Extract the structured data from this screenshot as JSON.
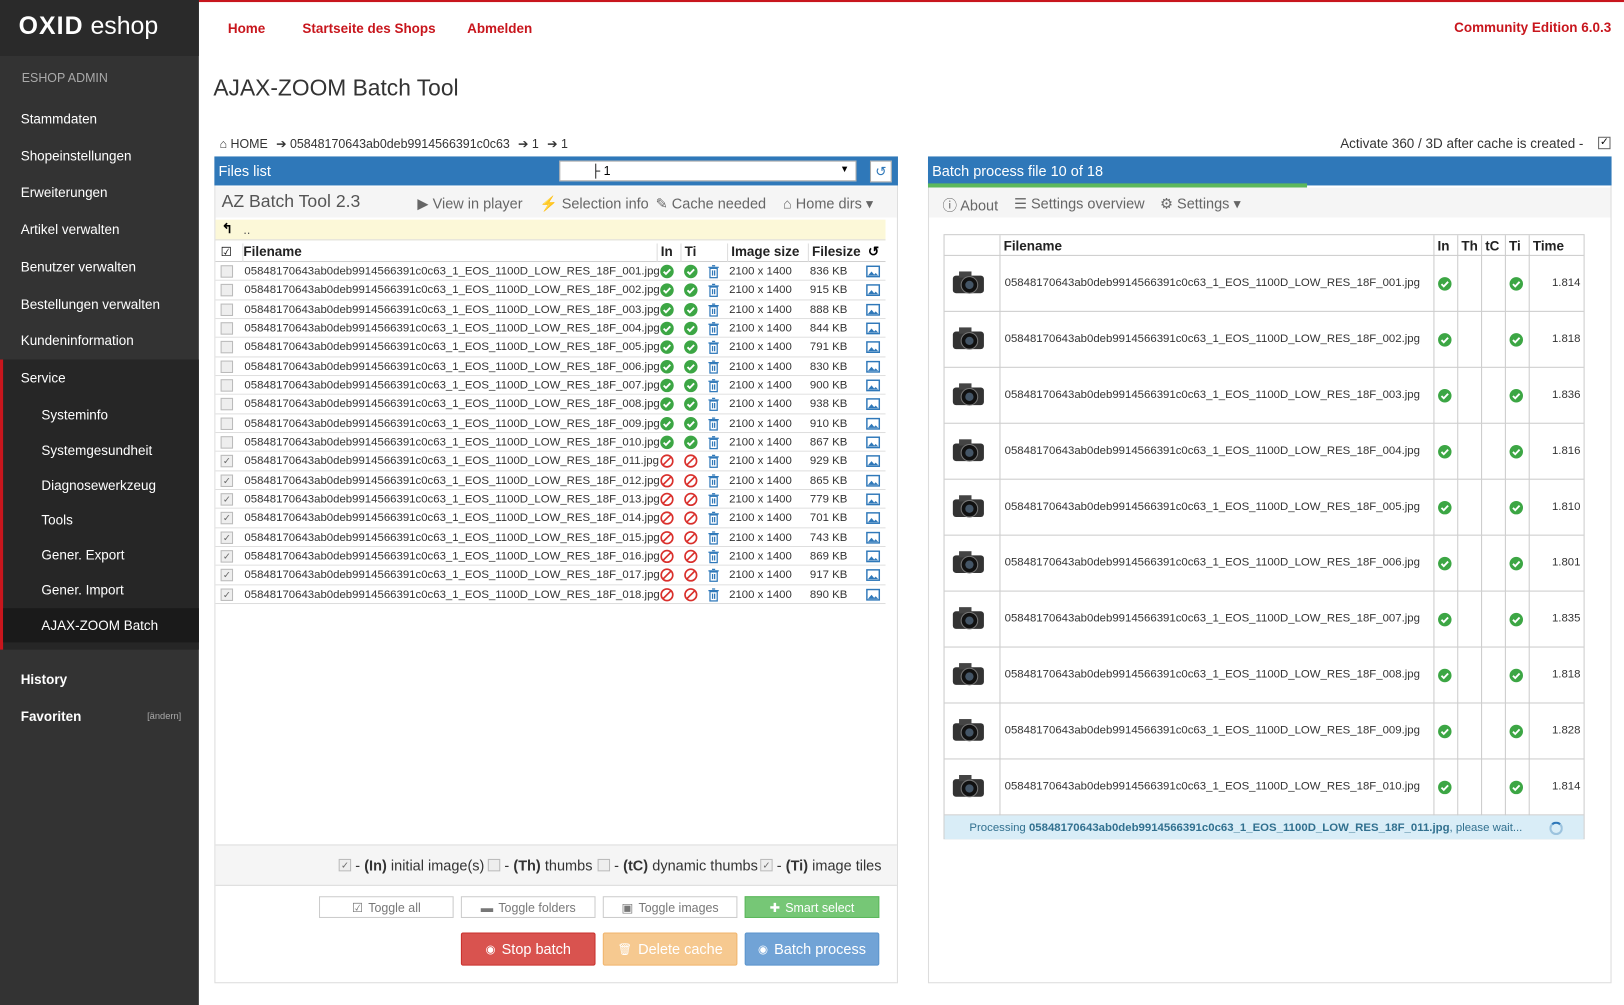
{
  "header": {
    "logo": {
      "brand": "OXID",
      "product": "eshop"
    },
    "nav": [
      "Home",
      "Startseite des Shops",
      "Abmelden"
    ],
    "edition": "Community Edition 6.0.3"
  },
  "sidebar": {
    "title": "ESHOP ADMIN",
    "items": [
      "Stammdaten",
      "Shopeinstellungen",
      "Erweiterungen",
      "Artikel verwalten",
      "Benutzer verwalten",
      "Bestellungen verwalten",
      "Kundeninformation",
      "Service"
    ],
    "subitems": [
      "Systeminfo",
      "Systemgesundheit",
      "Diagnosewerkzeug",
      "Tools",
      "Gener. Export",
      "Gener. Import",
      "AJAX-ZOOM Batch"
    ],
    "bottom": [
      "History",
      "Favoriten"
    ],
    "favorites_edit": "[ändern]"
  },
  "page": {
    "title": "AJAX-ZOOM Batch Tool",
    "breadcrumb": [
      "HOME",
      "05848170643ab0deb9914566391c0c63",
      "1",
      "1"
    ],
    "activate": "Activate 360 / 3D after cache is created -"
  },
  "files_panel": {
    "title": "Files list",
    "select": "├ 1",
    "tool_name": "AZ Batch Tool 2.3",
    "toolbar": [
      "View in player",
      "Selection info",
      "Cache needed",
      "Home dirs"
    ],
    "parent": "..",
    "columns": [
      "Filename",
      "In",
      "Ti",
      "Image size",
      "Filesize"
    ],
    "rows": [
      [
        "05848170643ab0deb9914566391c0c63_1_EOS_1100D_LOW_RES_18F_001.jpg",
        "2100 x 1400",
        "836 KB"
      ],
      [
        "05848170643ab0deb9914566391c0c63_1_EOS_1100D_LOW_RES_18F_002.jpg",
        "2100 x 1400",
        "915 KB"
      ],
      [
        "05848170643ab0deb9914566391c0c63_1_EOS_1100D_LOW_RES_18F_003.jpg",
        "2100 x 1400",
        "888 KB"
      ],
      [
        "05848170643ab0deb9914566391c0c63_1_EOS_1100D_LOW_RES_18F_004.jpg",
        "2100 x 1400",
        "844 KB"
      ],
      [
        "05848170643ab0deb9914566391c0c63_1_EOS_1100D_LOW_RES_18F_005.jpg",
        "2100 x 1400",
        "791 KB"
      ],
      [
        "05848170643ab0deb9914566391c0c63_1_EOS_1100D_LOW_RES_18F_006.jpg",
        "2100 x 1400",
        "830 KB"
      ],
      [
        "05848170643ab0deb9914566391c0c63_1_EOS_1100D_LOW_RES_18F_007.jpg",
        "2100 x 1400",
        "900 KB"
      ],
      [
        "05848170643ab0deb9914566391c0c63_1_EOS_1100D_LOW_RES_18F_008.jpg",
        "2100 x 1400",
        "938 KB"
      ],
      [
        "05848170643ab0deb9914566391c0c63_1_EOS_1100D_LOW_RES_18F_009.jpg",
        "2100 x 1400",
        "910 KB"
      ],
      [
        "05848170643ab0deb9914566391c0c63_1_EOS_1100D_LOW_RES_18F_010.jpg",
        "2100 x 1400",
        "867 KB"
      ],
      [
        "05848170643ab0deb9914566391c0c63_1_EOS_1100D_LOW_RES_18F_011.jpg",
        "2100 x 1400",
        "929 KB"
      ],
      [
        "05848170643ab0deb9914566391c0c63_1_EOS_1100D_LOW_RES_18F_012.jpg",
        "2100 x 1400",
        "865 KB"
      ],
      [
        "05848170643ab0deb9914566391c0c63_1_EOS_1100D_LOW_RES_18F_013.jpg",
        "2100 x 1400",
        "779 KB"
      ],
      [
        "05848170643ab0deb9914566391c0c63_1_EOS_1100D_LOW_RES_18F_014.jpg",
        "2100 x 1400",
        "701 KB"
      ],
      [
        "05848170643ab0deb9914566391c0c63_1_EOS_1100D_LOW_RES_18F_015.jpg",
        "2100 x 1400",
        "743 KB"
      ],
      [
        "05848170643ab0deb9914566391c0c63_1_EOS_1100D_LOW_RES_18F_016.jpg",
        "2100 x 1400",
        "869 KB"
      ],
      [
        "05848170643ab0deb9914566391c0c63_1_EOS_1100D_LOW_RES_18F_017.jpg",
        "2100 x 1400",
        "917 KB"
      ],
      [
        "05848170643ab0deb9914566391c0c63_1_EOS_1100D_LOW_RES_18F_018.jpg",
        "2100 x 1400",
        "890 KB"
      ]
    ],
    "legend": [
      {
        "prefix": "-",
        "code": "(In)",
        "text": "initial image(s)"
      },
      {
        "prefix": "-",
        "code": "(Th)",
        "text": "thumbs"
      },
      {
        "prefix": "-",
        "code": "(tC)",
        "text": "dynamic thumbs"
      },
      {
        "prefix": "-",
        "code": "(Ti)",
        "text": "image tiles"
      }
    ],
    "buttons": [
      "Toggle all",
      "Toggle folders",
      "Toggle images",
      "Smart select"
    ],
    "actions": [
      "Stop batch",
      "Delete cache",
      "Batch process"
    ]
  },
  "batch_panel": {
    "title": "Batch process file 10 of 18",
    "toolbar": [
      "About",
      "Settings overview",
      "Settings"
    ],
    "columns": [
      "Filename",
      "In",
      "Th",
      "tC",
      "Ti",
      "Time"
    ],
    "rows": [
      [
        "05848170643ab0deb9914566391c0c63_1_EOS_1100D_LOW_RES_18F_001.jpg",
        "1.814"
      ],
      [
        "05848170643ab0deb9914566391c0c63_1_EOS_1100D_LOW_RES_18F_002.jpg",
        "1.818"
      ],
      [
        "05848170643ab0deb9914566391c0c63_1_EOS_1100D_LOW_RES_18F_003.jpg",
        "1.836"
      ],
      [
        "05848170643ab0deb9914566391c0c63_1_EOS_1100D_LOW_RES_18F_004.jpg",
        "1.816"
      ],
      [
        "05848170643ab0deb9914566391c0c63_1_EOS_1100D_LOW_RES_18F_005.jpg",
        "1.810"
      ],
      [
        "05848170643ab0deb9914566391c0c63_1_EOS_1100D_LOW_RES_18F_006.jpg",
        "1.801"
      ],
      [
        "05848170643ab0deb9914566391c0c63_1_EOS_1100D_LOW_RES_18F_007.jpg",
        "1.835"
      ],
      [
        "05848170643ab0deb9914566391c0c63_1_EOS_1100D_LOW_RES_18F_008.jpg",
        "1.818"
      ],
      [
        "05848170643ab0deb9914566391c0c63_1_EOS_1100D_LOW_RES_18F_009.jpg",
        "1.828"
      ],
      [
        "05848170643ab0deb9914566391c0c63_1_EOS_1100D_LOW_RES_18F_010.jpg",
        "1.814"
      ]
    ],
    "processing": {
      "prefix": "Processing",
      "file": "05848170643ab0deb9914566391c0c63_1_EOS_1100D_LOW_RES_18F_011.jpg",
      "suffix": ", please wait..."
    }
  }
}
